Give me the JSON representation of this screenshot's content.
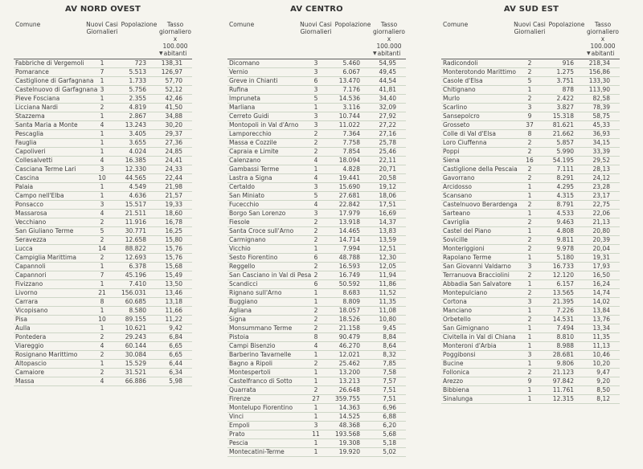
{
  "sort_icon": "▼",
  "colors": {
    "bg": "#f5f4ee",
    "text": "#3d3d3d",
    "title": "#333333",
    "rule-dark": "#606060",
    "rule-light": "#cdd6c6",
    "arrow": "#4a4a4a"
  },
  "chart_data": [
    {
      "type": "table",
      "title": "AV NORD OVEST",
      "columns": [
        "Comune",
        "Nuovi Casi Giornalieri",
        "Popolazione",
        "Tasso giornaliero x 100.000 abitanti"
      ],
      "columns_display": [
        "Comune",
        "Nuovi Casi\nGiornalieri",
        "Popolazione",
        "Tasso\ngiornaliero x\n100.000\nabitanti"
      ],
      "sorted_by": "Tasso giornaliero x 100.000 abitanti (desc)",
      "rows": [
        [
          "Fabbriche di Vergemoli",
          "1",
          "723",
          "138,31"
        ],
        [
          "Pomarance",
          "7",
          "5.513",
          "126,97"
        ],
        [
          "Castiglione di Garfagnana",
          "1",
          "1.733",
          "57,70"
        ],
        [
          "Castelnuovo di Garfagnana",
          "3",
          "5.756",
          "52,12"
        ],
        [
          "Pieve Fosciana",
          "1",
          "2.355",
          "42,46"
        ],
        [
          "Licciana Nardi",
          "2",
          "4.819",
          "41,50"
        ],
        [
          "Stazzema",
          "1",
          "2.867",
          "34,88"
        ],
        [
          "Santa Maria a Monte",
          "4",
          "13.243",
          "30,20"
        ],
        [
          "Pescaglia",
          "1",
          "3.405",
          "29,37"
        ],
        [
          "Fauglia",
          "1",
          "3.655",
          "27,36"
        ],
        [
          "Capoliveri",
          "1",
          "4.024",
          "24,85"
        ],
        [
          "Collesalvetti",
          "4",
          "16.385",
          "24,41"
        ],
        [
          "Casciana Terme Lari",
          "3",
          "12.330",
          "24,33"
        ],
        [
          "Cascina",
          "10",
          "44.565",
          "22,44"
        ],
        [
          "Palaia",
          "1",
          "4.549",
          "21,98"
        ],
        [
          "Campo nell'Elba",
          "1",
          "4.636",
          "21,57"
        ],
        [
          "Ponsacco",
          "3",
          "15.517",
          "19,33"
        ],
        [
          "Massarosa",
          "4",
          "21.511",
          "18,60"
        ],
        [
          "Vecchiano",
          "2",
          "11.916",
          "16,78"
        ],
        [
          "San Giuliano Terme",
          "5",
          "30.771",
          "16,25"
        ],
        [
          "Seravezza",
          "2",
          "12.658",
          "15,80"
        ],
        [
          "Lucca",
          "14",
          "88.822",
          "15,76"
        ],
        [
          "Campiglia Marittima",
          "2",
          "12.693",
          "15,76"
        ],
        [
          "Capannoli",
          "1",
          "6.378",
          "15,68"
        ],
        [
          "Capannori",
          "7",
          "45.196",
          "15,49"
        ],
        [
          "Fivizzano",
          "1",
          "7.410",
          "13,50"
        ],
        [
          "Livorno",
          "21",
          "156.031",
          "13,46"
        ],
        [
          "Carrara",
          "8",
          "60.685",
          "13,18"
        ],
        [
          "Vicopisano",
          "1",
          "8.580",
          "11,66"
        ],
        [
          "Pisa",
          "10",
          "89.155",
          "11,22"
        ],
        [
          "Aulla",
          "1",
          "10.621",
          "9,42"
        ],
        [
          "Pontedera",
          "2",
          "29.243",
          "6,84"
        ],
        [
          "Viareggio",
          "4",
          "60.144",
          "6,65"
        ],
        [
          "Rosignano Marittimo",
          "2",
          "30.084",
          "6,65"
        ],
        [
          "Altopascio",
          "1",
          "15.529",
          "6,44"
        ],
        [
          "Camaiore",
          "2",
          "31.521",
          "6,34"
        ],
        [
          "Massa",
          "4",
          "66.886",
          "5,98"
        ]
      ]
    },
    {
      "type": "table",
      "title": "AV CENTRO",
      "columns": [
        "Comune",
        "Nuovi Casi Giornalieri",
        "Popolazione",
        "Tasso giornaliero x 100.000 abitanti"
      ],
      "columns_display": [
        "Comune",
        "Nuovi Casi\nGiornalieri",
        "Popolazione",
        "Tasso\ngiornaliero x\n100.000\nabitanti"
      ],
      "sorted_by": "Tasso giornaliero x 100.000 abitanti (desc)",
      "rows": [
        [
          "Dicomano",
          "3",
          "5.460",
          "54,95"
        ],
        [
          "Vernio",
          "3",
          "6.067",
          "49,45"
        ],
        [
          "Greve in Chianti",
          "6",
          "13.470",
          "44,54"
        ],
        [
          "Rufina",
          "3",
          "7.176",
          "41,81"
        ],
        [
          "Impruneta",
          "5",
          "14.536",
          "34,40"
        ],
        [
          "Marliana",
          "1",
          "3.116",
          "32,09"
        ],
        [
          "Cerreto Guidi",
          "3",
          "10.744",
          "27,92"
        ],
        [
          "Montopoli in Val d'Arno",
          "3",
          "11.022",
          "27,22"
        ],
        [
          "Lamporecchio",
          "2",
          "7.364",
          "27,16"
        ],
        [
          "Massa e Cozzile",
          "2",
          "7.758",
          "25,78"
        ],
        [
          "Capraia e Limite",
          "2",
          "7.854",
          "25,46"
        ],
        [
          "Calenzano",
          "4",
          "18.094",
          "22,11"
        ],
        [
          "Gambassi Terme",
          "1",
          "4.828",
          "20,71"
        ],
        [
          "Lastra a Signa",
          "4",
          "19.441",
          "20,58"
        ],
        [
          "Certaldo",
          "3",
          "15.690",
          "19,12"
        ],
        [
          "San Miniato",
          "5",
          "27.681",
          "18,06"
        ],
        [
          "Fucecchio",
          "4",
          "22.842",
          "17,51"
        ],
        [
          "Borgo San Lorenzo",
          "3",
          "17.979",
          "16,69"
        ],
        [
          "Fiesole",
          "2",
          "13.918",
          "14,37"
        ],
        [
          "Santa Croce sull'Arno",
          "2",
          "14.465",
          "13,83"
        ],
        [
          "Carmignano",
          "2",
          "14.714",
          "13,59"
        ],
        [
          "Vicchio",
          "1",
          "7.994",
          "12,51"
        ],
        [
          "Sesto Fiorentino",
          "6",
          "48.788",
          "12,30"
        ],
        [
          "Reggello",
          "2",
          "16.593",
          "12,05"
        ],
        [
          "San Casciano in Val di Pesa",
          "2",
          "16.749",
          "11,94"
        ],
        [
          "Scandicci",
          "6",
          "50.592",
          "11,86"
        ],
        [
          "Rignano sull'Arno",
          "1",
          "8.683",
          "11,52"
        ],
        [
          "Buggiano",
          "1",
          "8.809",
          "11,35"
        ],
        [
          "Agliana",
          "2",
          "18.057",
          "11,08"
        ],
        [
          "Signa",
          "2",
          "18.526",
          "10,80"
        ],
        [
          "Monsummano Terme",
          "2",
          "21.158",
          "9,45"
        ],
        [
          "Pistoia",
          "8",
          "90.479",
          "8,84"
        ],
        [
          "Campi Bisenzio",
          "4",
          "46.270",
          "8,64"
        ],
        [
          "Barberino Tavarnelle",
          "1",
          "12.021",
          "8,32"
        ],
        [
          "Bagno a Ripoli",
          "2",
          "25.462",
          "7,85"
        ],
        [
          "Montespertoli",
          "1",
          "13.200",
          "7,58"
        ],
        [
          "Castelfranco di Sotto",
          "1",
          "13.213",
          "7,57"
        ],
        [
          "Quarrata",
          "2",
          "26.648",
          "7,51"
        ],
        [
          "Firenze",
          "27",
          "359.755",
          "7,51"
        ],
        [
          "Montelupo Fiorentino",
          "1",
          "14.363",
          "6,96"
        ],
        [
          "Vinci",
          "1",
          "14.525",
          "6,88"
        ],
        [
          "Empoli",
          "3",
          "48.368",
          "6,20"
        ],
        [
          "Prato",
          "11",
          "193.568",
          "5,68"
        ],
        [
          "Pescia",
          "1",
          "19.308",
          "5,18"
        ],
        [
          "Montecatini-Terme",
          "1",
          "19.920",
          "5,02"
        ]
      ]
    },
    {
      "type": "table",
      "title": "AV SUD EST",
      "columns": [
        "Comune",
        "Nuovi Casi Giornalieri",
        "Popolazione",
        "Tasso giornaliero x 100.000 abitanti"
      ],
      "columns_display": [
        "Comune",
        "Nuovi Casi\nGiornalieri",
        "Popolazione",
        "Tasso\ngiornaliero x\n100.000\nabitanti"
      ],
      "sorted_by": "Tasso giornaliero x 100.000 abitanti (desc)",
      "rows": [
        [
          "Radicondoli",
          "2",
          "916",
          "218,34"
        ],
        [
          "Monterotondo Marittimo",
          "2",
          "1.275",
          "156,86"
        ],
        [
          "Casole d'Elsa",
          "5",
          "3.751",
          "133,30"
        ],
        [
          "Chitignano",
          "1",
          "878",
          "113,90"
        ],
        [
          "Murlo",
          "2",
          "2.422",
          "82,58"
        ],
        [
          "Scarlino",
          "3",
          "3.827",
          "78,39"
        ],
        [
          "Sansepolcro",
          "9",
          "15.318",
          "58,75"
        ],
        [
          "Grosseto",
          "37",
          "81.621",
          "45,33"
        ],
        [
          "Colle di Val d'Elsa",
          "8",
          "21.662",
          "36,93"
        ],
        [
          "Loro Ciuffenna",
          "2",
          "5.857",
          "34,15"
        ],
        [
          "Poppi",
          "2",
          "5.990",
          "33,39"
        ],
        [
          "Siena",
          "16",
          "54.195",
          "29,52"
        ],
        [
          "Castiglione della Pescaia",
          "2",
          "7.111",
          "28,13"
        ],
        [
          "Gavorrano",
          "2",
          "8.291",
          "24,12"
        ],
        [
          "Arcidosso",
          "1",
          "4.295",
          "23,28"
        ],
        [
          "Scansano",
          "1",
          "4.315",
          "23,17"
        ],
        [
          "Castelnuovo Berardenga",
          "2",
          "8.791",
          "22,75"
        ],
        [
          "Sarteano",
          "1",
          "4.533",
          "22,06"
        ],
        [
          "Cavriglia",
          "2",
          "9.463",
          "21,13"
        ],
        [
          "Castel del Piano",
          "1",
          "4.808",
          "20,80"
        ],
        [
          "Sovicille",
          "2",
          "9.811",
          "20,39"
        ],
        [
          "Monteriggioni",
          "2",
          "9.978",
          "20,04"
        ],
        [
          "Rapolano Terme",
          "1",
          "5.180",
          "19,31"
        ],
        [
          "San Giovanni Valdarno",
          "3",
          "16.733",
          "17,93"
        ],
        [
          "Terranuova Bracciolini",
          "2",
          "12.120",
          "16,50"
        ],
        [
          "Abbadia San Salvatore",
          "1",
          "6.157",
          "16,24"
        ],
        [
          "Montepulciano",
          "2",
          "13.565",
          "14,74"
        ],
        [
          "Cortona",
          "3",
          "21.395",
          "14,02"
        ],
        [
          "Manciano",
          "1",
          "7.226",
          "13,84"
        ],
        [
          "Orbetello",
          "2",
          "14.531",
          "13,76"
        ],
        [
          "San Gimignano",
          "1",
          "7.494",
          "13,34"
        ],
        [
          "Civitella in Val di Chiana",
          "1",
          "8.810",
          "11,35"
        ],
        [
          "Monteroni d'Arbia",
          "1",
          "8.988",
          "11,13"
        ],
        [
          "Poggibonsi",
          "3",
          "28.681",
          "10,46"
        ],
        [
          "Bucine",
          "1",
          "9.806",
          "10,20"
        ],
        [
          "Follonica",
          "2",
          "21.123",
          "9,47"
        ],
        [
          "Arezzo",
          "9",
          "97.842",
          "9,20"
        ],
        [
          "Bibbiena",
          "1",
          "11.761",
          "8,50"
        ],
        [
          "Sinalunga",
          "1",
          "12.315",
          "8,12"
        ]
      ]
    }
  ]
}
